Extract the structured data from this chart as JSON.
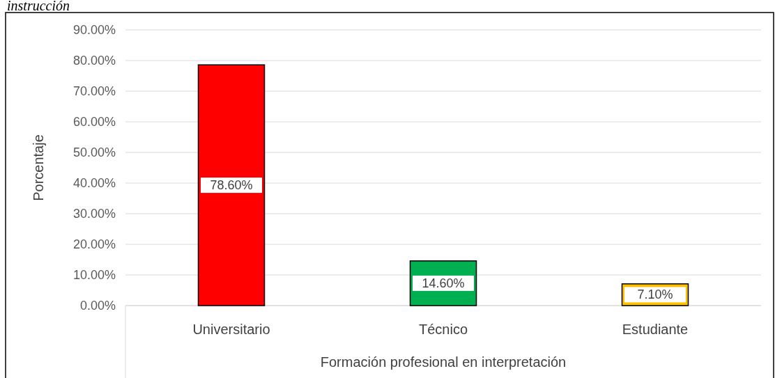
{
  "chart_data": {
    "type": "bar",
    "title": "instrucción",
    "xlabel": "Formación profesional en interpretación",
    "ylabel": "Porcentaje",
    "categories": [
      "Universitario",
      "Técnico",
      "Estudiante"
    ],
    "values": [
      78.6,
      14.6,
      7.1
    ],
    "colors": [
      "#ff0000",
      "#00b050",
      "#ffc000"
    ],
    "value_labels": [
      "78.60%",
      "14.60%",
      "7.10%"
    ],
    "ylim": [
      0,
      90
    ],
    "yticks": [
      {
        "value": 0,
        "label": "0.00%"
      },
      {
        "value": 10,
        "label": "10.00%"
      },
      {
        "value": 20,
        "label": "20.00%"
      },
      {
        "value": 30,
        "label": "30.00%"
      },
      {
        "value": 40,
        "label": "40.00%"
      },
      {
        "value": 50,
        "label": "50.00%"
      },
      {
        "value": 60,
        "label": "60.00%"
      },
      {
        "value": 70,
        "label": "70.00%"
      },
      {
        "value": 80,
        "label": "80.00%"
      },
      {
        "value": 90,
        "label": "90.00%"
      }
    ],
    "grid": "y"
  }
}
